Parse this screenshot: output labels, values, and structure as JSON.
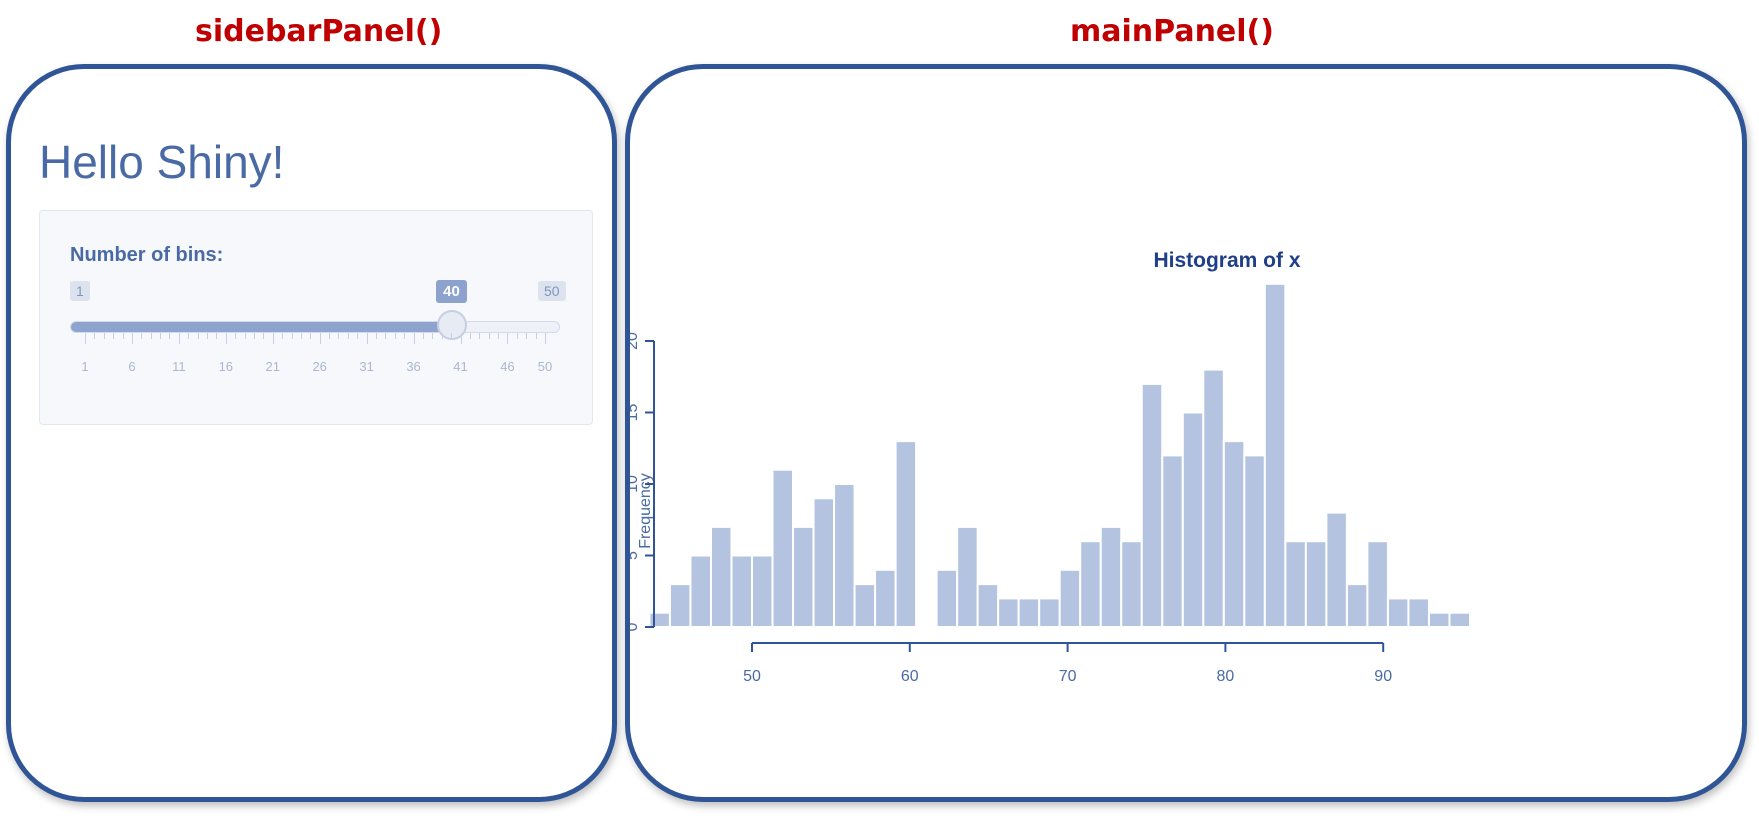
{
  "labels": {
    "sidebar": "sidebarPanel()",
    "main": "mainPanel()"
  },
  "app": {
    "title": "Hello Shiny!"
  },
  "slider": {
    "label": "Number of bins:",
    "min": 1,
    "max": 50,
    "value": 40,
    "min_text": "1",
    "max_text": "50",
    "value_text": "40",
    "grid_labels": [
      "1",
      "6",
      "11",
      "16",
      "21",
      "26",
      "31",
      "36",
      "41",
      "46",
      "50"
    ]
  },
  "chart_data": {
    "type": "bar",
    "title": "Histogram of x",
    "xlabel": "",
    "ylabel": "Frequency",
    "bin_start": 43.5,
    "bin_width": 1.3,
    "values": [
      1,
      3,
      5,
      7,
      5,
      5,
      11,
      7,
      9,
      10,
      3,
      4,
      13,
      0,
      4,
      7,
      3,
      2,
      2,
      2,
      4,
      6,
      7,
      6,
      17,
      12,
      15,
      18,
      13,
      12,
      24,
      6,
      6,
      8,
      3,
      6,
      2,
      2,
      1,
      1
    ],
    "xlim": [
      43.5,
      96.5
    ],
    "ylim": [
      0,
      24
    ],
    "xticks": [
      "50",
      "60",
      "70",
      "80",
      "90"
    ],
    "yticks": [
      "0",
      "5",
      "10",
      "15",
      "20"
    ],
    "colors": {
      "bar": "#b4c4e0",
      "axis": "#2f5597",
      "title": "#1f3f88",
      "tick": "#4a6aa5"
    }
  },
  "colors": {
    "panel_border": "#2f5597",
    "panel_label": "#c00000"
  }
}
